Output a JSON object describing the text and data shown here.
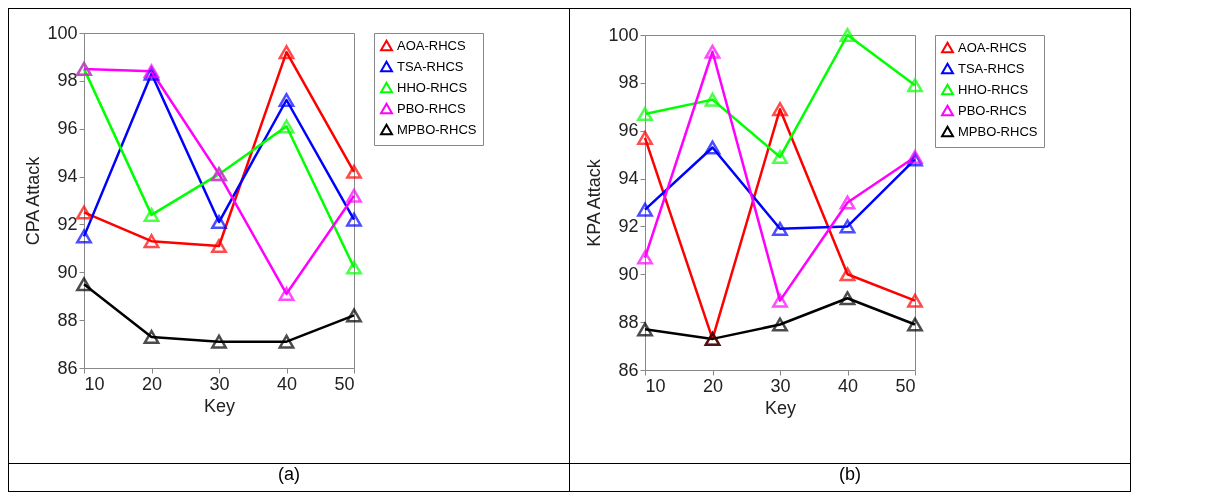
{
  "chart_data": [
    {
      "type": "line",
      "xlabel": "Key",
      "ylabel": "CPA Attack",
      "annotations": [
        "(a)"
      ],
      "x": [
        10,
        20,
        30,
        40,
        50
      ],
      "xlim": [
        10,
        50
      ],
      "xticks": [
        10,
        20,
        30,
        40,
        50
      ],
      "ylim": [
        86,
        100
      ],
      "yticks": [
        86,
        88,
        90,
        92,
        94,
        96,
        98,
        100
      ],
      "marker": "triangle",
      "legend": "right",
      "grid": false,
      "series": [
        {
          "name": "AOA-RHCS",
          "color": "#ff0000",
          "values": [
            92.5,
            91.3,
            91.1,
            99.2,
            94.2
          ]
        },
        {
          "name": "TSA-RHCS",
          "color": "#0000ff",
          "values": [
            91.5,
            98.3,
            92.1,
            97.2,
            92.2
          ]
        },
        {
          "name": "HHO-RHCS",
          "color": "#00ff00",
          "values": [
            98.5,
            92.4,
            94.1,
            96.1,
            90.2
          ]
        },
        {
          "name": "PBO-RHCS",
          "color": "#ff00ff",
          "values": [
            98.5,
            98.4,
            94.1,
            89.1,
            93.2
          ]
        },
        {
          "name": "MPBO-RHCS",
          "color": "#000000",
          "values": [
            89.5,
            87.3,
            87.1,
            87.1,
            88.2
          ]
        }
      ]
    },
    {
      "type": "line",
      "xlabel": "Key",
      "ylabel": "KPA Attack",
      "annotations": [
        "(b)"
      ],
      "x": [
        10,
        20,
        30,
        40,
        50
      ],
      "xlim": [
        10,
        50
      ],
      "xticks": [
        10,
        20,
        30,
        40,
        50
      ],
      "ylim": [
        86,
        100
      ],
      "yticks": [
        86,
        88,
        90,
        92,
        94,
        96,
        98,
        100
      ],
      "marker": "triangle",
      "legend": "right",
      "grid": false,
      "series": [
        {
          "name": "AOA-RHCS",
          "color": "#ff0000",
          "values": [
            95.7,
            87.3,
            96.9,
            90.0,
            88.9
          ]
        },
        {
          "name": "TSA-RHCS",
          "color": "#0000ff",
          "values": [
            92.7,
            95.3,
            91.9,
            92.0,
            94.8
          ]
        },
        {
          "name": "HHO-RHCS",
          "color": "#00ff00",
          "values": [
            96.7,
            97.3,
            94.9,
            100,
            97.9
          ]
        },
        {
          "name": "PBO-RHCS",
          "color": "#ff00ff",
          "values": [
            90.7,
            99.3,
            88.9,
            93.0,
            94.9
          ]
        },
        {
          "name": "MPBO-RHCS",
          "color": "#000000",
          "values": [
            87.7,
            87.3,
            87.9,
            89.0,
            87.9
          ]
        }
      ]
    }
  ]
}
